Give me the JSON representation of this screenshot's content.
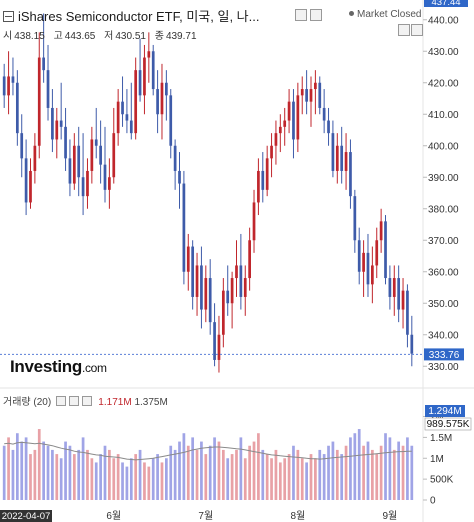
{
  "header": {
    "title": "iShares Semiconductor ETF, 미국, 일, 나...",
    "status": "Market Closed",
    "ohlc": [
      {
        "label": "시",
        "value": "438.15"
      },
      {
        "label": "고",
        "value": "443.65"
      },
      {
        "label": "저",
        "value": "430.51"
      },
      {
        "label": "종",
        "value": "439.71"
      }
    ],
    "top_price_tag": "437.44"
  },
  "logo": {
    "name": "Investing",
    "suffix": ".com"
  },
  "volume_panel": {
    "label": "거래량 (20)",
    "value_red": "1.171M",
    "value_ma": "1.375M",
    "tags": {
      "volume": "1.294M",
      "ma": "989.575K"
    }
  },
  "colors": {
    "up": "#c0262c",
    "down": "#3e5ba9",
    "vol_up": "#e8a1a6",
    "vol_down": "#a0a4e6",
    "ma": "#8a8a8a",
    "tag_blue": "#2f67c8",
    "guide": "#5a7fd8"
  },
  "chart_data": {
    "type": "candlestick",
    "x_tick_labels": [
      "5월",
      "6월",
      "7월",
      "8월",
      "9월"
    ],
    "date_label": "2022-04-07",
    "last_price_label": "333.76",
    "last_price": 333.76,
    "ylim": [
      325,
      445
    ],
    "y_ticks": [
      330,
      340,
      350,
      360,
      370,
      380,
      390,
      400,
      410,
      420,
      430,
      440
    ],
    "volume_ticks": [
      "2M",
      "1.5M",
      "1M",
      "500K",
      "0"
    ],
    "volume_ylim": [
      0,
      2.3
    ],
    "legend": "none",
    "grid": false,
    "candles": [
      [
        422,
        426,
        412,
        416
      ],
      [
        416,
        430,
        410,
        422
      ],
      [
        422,
        428,
        416,
        420
      ],
      [
        420,
        424,
        400,
        404
      ],
      [
        404,
        410,
        390,
        396
      ],
      [
        396,
        402,
        378,
        382
      ],
      [
        382,
        396,
        380,
        392
      ],
      [
        392,
        404,
        388,
        400
      ],
      [
        400,
        436,
        396,
        428
      ],
      [
        428,
        442,
        420,
        424
      ],
      [
        424,
        432,
        408,
        412
      ],
      [
        412,
        418,
        398,
        402
      ],
      [
        402,
        412,
        396,
        408
      ],
      [
        408,
        420,
        402,
        406
      ],
      [
        406,
        412,
        392,
        396
      ],
      [
        396,
        402,
        384,
        388
      ],
      [
        388,
        404,
        386,
        400
      ],
      [
        400,
        406,
        384,
        390
      ],
      [
        390,
        404,
        378,
        384
      ],
      [
        384,
        396,
        380,
        392
      ],
      [
        392,
        406,
        388,
        402
      ],
      [
        402,
        412,
        396,
        400
      ],
      [
        400,
        408,
        388,
        394
      ],
      [
        394,
        406,
        382,
        386
      ],
      [
        386,
        396,
        380,
        390
      ],
      [
        390,
        412,
        388,
        404
      ],
      [
        404,
        418,
        400,
        414
      ],
      [
        414,
        422,
        406,
        410
      ],
      [
        410,
        418,
        404,
        408
      ],
      [
        408,
        420,
        402,
        404
      ],
      [
        404,
        428,
        402,
        424
      ],
      [
        424,
        434,
        414,
        416
      ],
      [
        416,
        432,
        410,
        428
      ],
      [
        428,
        436,
        420,
        430
      ],
      [
        430,
        432,
        416,
        418
      ],
      [
        418,
        424,
        404,
        410
      ],
      [
        410,
        426,
        402,
        420
      ],
      [
        420,
        424,
        408,
        416
      ],
      [
        416,
        418,
        396,
        400
      ],
      [
        400,
        402,
        386,
        392
      ],
      [
        392,
        398,
        380,
        388
      ],
      [
        388,
        392,
        356,
        360
      ],
      [
        360,
        372,
        354,
        368
      ],
      [
        368,
        370,
        348,
        352
      ],
      [
        352,
        366,
        346,
        362
      ],
      [
        362,
        368,
        342,
        348
      ],
      [
        348,
        362,
        344,
        358
      ],
      [
        358,
        364,
        340,
        344
      ],
      [
        344,
        350,
        330,
        332
      ],
      [
        332,
        346,
        328,
        340
      ],
      [
        340,
        358,
        336,
        354
      ],
      [
        354,
        362,
        346,
        350
      ],
      [
        350,
        360,
        342,
        358
      ],
      [
        358,
        370,
        352,
        362
      ],
      [
        362,
        372,
        348,
        352
      ],
      [
        352,
        362,
        346,
        358
      ],
      [
        358,
        374,
        354,
        370
      ],
      [
        370,
        386,
        366,
        382
      ],
      [
        382,
        396,
        378,
        392
      ],
      [
        392,
        398,
        382,
        386
      ],
      [
        386,
        400,
        384,
        396
      ],
      [
        396,
        404,
        390,
        400
      ],
      [
        400,
        408,
        394,
        404
      ],
      [
        404,
        410,
        398,
        406
      ],
      [
        406,
        412,
        400,
        408
      ],
      [
        408,
        418,
        404,
        414
      ],
      [
        414,
        418,
        396,
        402
      ],
      [
        402,
        420,
        398,
        416
      ],
      [
        416,
        422,
        410,
        418
      ],
      [
        418,
        424,
        410,
        414
      ],
      [
        414,
        422,
        406,
        418
      ],
      [
        418,
        424,
        410,
        420
      ],
      [
        420,
        422,
        410,
        412
      ],
      [
        412,
        418,
        404,
        408
      ],
      [
        408,
        412,
        400,
        404
      ],
      [
        404,
        408,
        390,
        392
      ],
      [
        392,
        404,
        388,
        400
      ],
      [
        400,
        406,
        388,
        392
      ],
      [
        392,
        404,
        386,
        398
      ],
      [
        398,
        402,
        380,
        384
      ],
      [
        384,
        386,
        366,
        370
      ],
      [
        370,
        374,
        356,
        360
      ],
      [
        360,
        370,
        352,
        366
      ],
      [
        366,
        372,
        352,
        356
      ],
      [
        356,
        368,
        350,
        362
      ],
      [
        362,
        374,
        358,
        370
      ],
      [
        370,
        380,
        366,
        376
      ],
      [
        376,
        378,
        356,
        358
      ],
      [
        358,
        362,
        348,
        352
      ],
      [
        352,
        362,
        346,
        358
      ],
      [
        358,
        362,
        344,
        348
      ],
      [
        348,
        358,
        342,
        354
      ],
      [
        354,
        356,
        336,
        340
      ],
      [
        340,
        346,
        330,
        334
      ]
    ],
    "volumes": [
      1.3,
      1.5,
      1.2,
      1.6,
      1.4,
      1.5,
      1.1,
      1.2,
      1.7,
      1.4,
      1.3,
      1.2,
      1.1,
      1.0,
      1.4,
      1.3,
      1.1,
      1.2,
      1.5,
      1.2,
      1.0,
      0.9,
      1.1,
      1.3,
      1.2,
      1.0,
      1.1,
      0.9,
      0.8,
      1.0,
      1.1,
      1.2,
      0.9,
      0.8,
      1.0,
      1.1,
      0.9,
      1.0,
      1.3,
      1.2,
      1.4,
      1.6,
      1.3,
      1.5,
      1.2,
      1.4,
      1.1,
      1.3,
      1.5,
      1.4,
      1.2,
      1.0,
      1.1,
      1.2,
      1.5,
      1.0,
      1.3,
      1.4,
      1.6,
      1.2,
      1.1,
      1.0,
      1.2,
      0.9,
      1.0,
      1.1,
      1.3,
      1.2,
      1.0,
      0.9,
      1.1,
      1.0,
      1.2,
      1.1,
      1.3,
      1.4,
      1.2,
      1.1,
      1.3,
      1.5,
      1.6,
      1.7,
      1.3,
      1.4,
      1.2,
      1.1,
      1.3,
      1.6,
      1.5,
      1.2,
      1.4,
      1.3,
      1.5,
      1.3
    ],
    "volume_ma": [
      1.35,
      1.36,
      1.34,
      1.37,
      1.38,
      1.37,
      1.36,
      1.35,
      1.36,
      1.34,
      1.32,
      1.3,
      1.27,
      1.24,
      1.22,
      1.2,
      1.17,
      1.15,
      1.14,
      1.12,
      1.1,
      1.08,
      1.07,
      1.05,
      1.04,
      1.03,
      1.02,
      1.0,
      0.98,
      0.97,
      0.96,
      0.97,
      0.98,
      0.99,
      1.0,
      1.02,
      1.04,
      1.06,
      1.08,
      1.1,
      1.12,
      1.14,
      1.17,
      1.2,
      1.22,
      1.24,
      1.25,
      1.26,
      1.27,
      1.27,
      1.26,
      1.25,
      1.24,
      1.23,
      1.22,
      1.2,
      1.18,
      1.16,
      1.14,
      1.12,
      1.1,
      1.08,
      1.07,
      1.06,
      1.05,
      1.04,
      1.03,
      1.02,
      1.01,
      1.0,
      0.99,
      0.99,
      0.98,
      0.99,
      1.0,
      1.01,
      1.02,
      1.03,
      1.04,
      1.05,
      1.06,
      1.07,
      1.08,
      1.09,
      1.1,
      1.11,
      1.12,
      1.13,
      1.14,
      1.15,
      1.16,
      1.16,
      1.17,
      1.17
    ]
  }
}
